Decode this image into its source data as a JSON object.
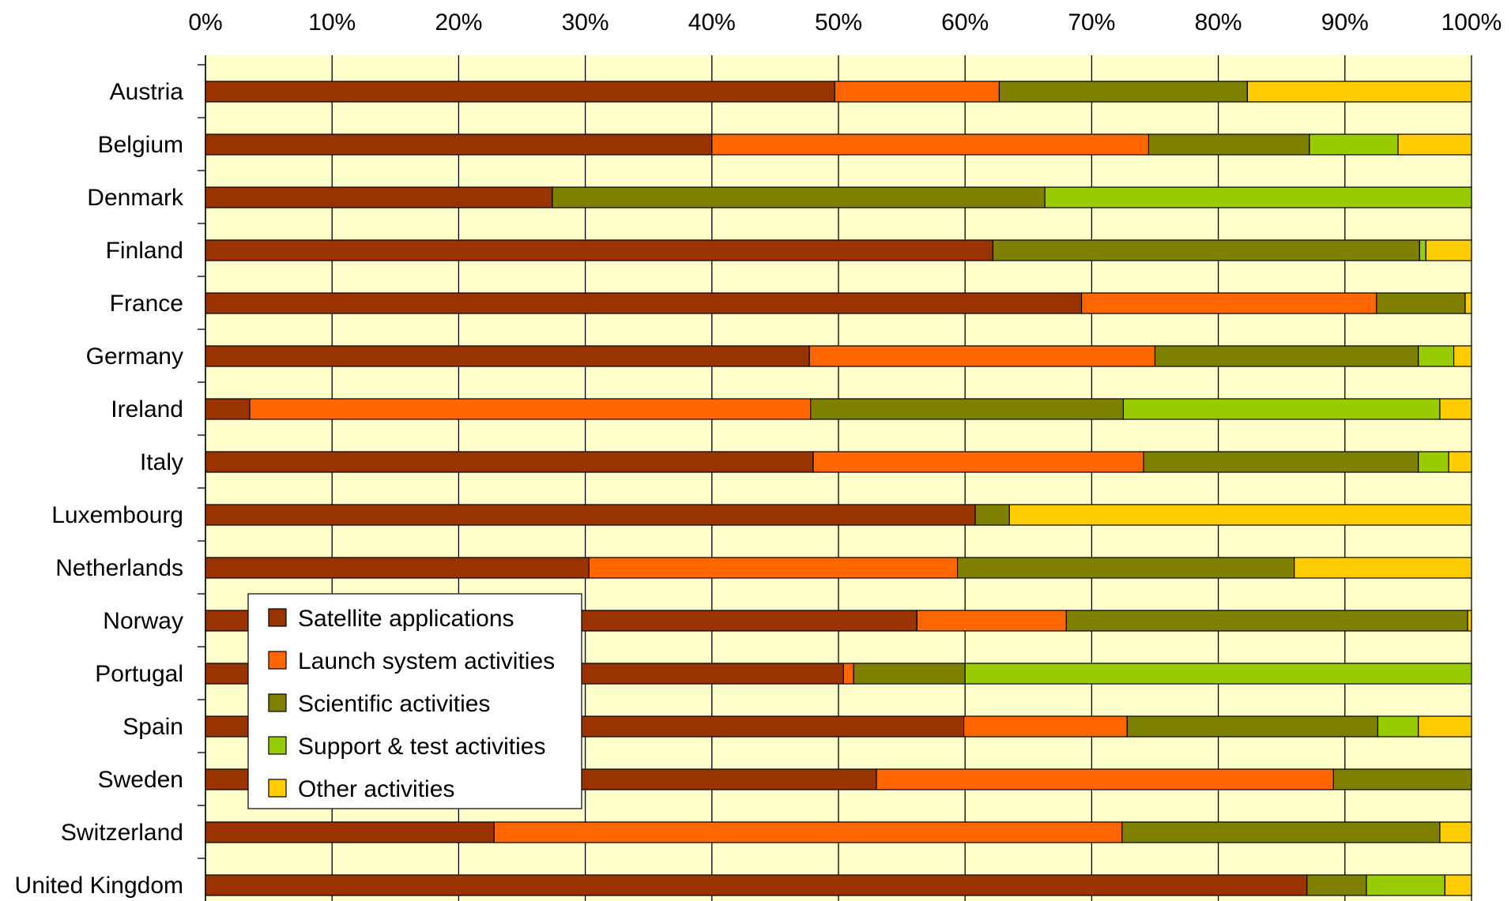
{
  "chart_data": {
    "type": "bar",
    "orientation": "horizontal",
    "stacked": "percent",
    "grid": true,
    "legend_position": "bottom-left overlay",
    "xlim": [
      0,
      100
    ],
    "x_ticks": [
      "0%",
      "10%",
      "20%",
      "30%",
      "40%",
      "50%",
      "60%",
      "70%",
      "80%",
      "90%",
      "100%"
    ],
    "categories": [
      "Austria",
      "Belgium",
      "Denmark",
      "Finland",
      "France",
      "Germany",
      "Ireland",
      "Italy",
      "Luxembourg",
      "Netherlands",
      "Norway",
      "Portugal",
      "Spain",
      "Sweden",
      "Switzerland",
      "United Kingdom"
    ],
    "series": [
      {
        "name": "Satellite applications",
        "color": "#993300",
        "values": [
          49.7,
          40.0,
          27.4,
          62.2,
          69.2,
          47.7,
          3.5,
          48.0,
          60.8,
          30.3,
          56.2,
          50.4,
          59.9,
          53.0,
          22.8,
          87.0
        ]
      },
      {
        "name": "Launch system activities",
        "color": "#FF6600",
        "values": [
          13.0,
          34.5,
          0,
          0,
          23.3,
          27.3,
          44.3,
          26.1,
          0,
          29.1,
          11.8,
          0.8,
          12.9,
          36.1,
          49.6,
          0
        ]
      },
      {
        "name": "Scientific activities",
        "color": "#808000",
        "values": [
          19.6,
          12.7,
          38.9,
          33.7,
          7.0,
          20.8,
          24.7,
          21.7,
          2.7,
          26.6,
          31.7,
          8.8,
          19.8,
          10.9,
          25.1,
          4.7
        ]
      },
      {
        "name": "Support & test activities",
        "color": "#99CC00",
        "values": [
          0,
          7.0,
          33.7,
          0.5,
          0,
          2.8,
          25.0,
          2.4,
          0,
          0,
          0,
          40.0,
          3.2,
          0,
          0,
          6.2
        ]
      },
      {
        "name": "Other activities",
        "color": "#FFCC00",
        "values": [
          17.7,
          5.8,
          0,
          3.6,
          0.5,
          1.4,
          2.5,
          1.8,
          36.5,
          14.0,
          0.3,
          0,
          4.2,
          0,
          2.5,
          2.1
        ]
      }
    ]
  },
  "colors": {
    "plot_background": "#FFFFCC",
    "gridline": "#000000"
  }
}
